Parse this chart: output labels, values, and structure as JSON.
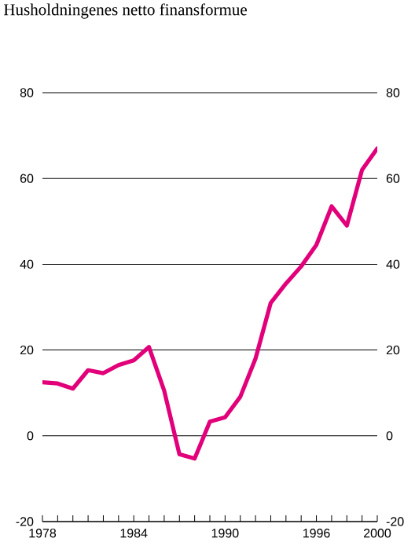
{
  "chart_data": {
    "type": "line",
    "title": "Husholdningenes netto finansformue",
    "x": [
      1978,
      1979,
      1980,
      1981,
      1982,
      1983,
      1984,
      1985,
      1986,
      1987,
      1988,
      1989,
      1990,
      1991,
      1992,
      1993,
      1994,
      1995,
      1996,
      1997,
      1998,
      1999,
      2000
    ],
    "series": [
      {
        "color": "#e2007a",
        "values": [
          12.5,
          12.2,
          11,
          15.3,
          14.6,
          16.5,
          17.6,
          20.7,
          10.5,
          -4.3,
          -5.3,
          3.3,
          4.3,
          9.1,
          18,
          31,
          35.5,
          39.5,
          44.5,
          53.5,
          49,
          62,
          67
        ]
      }
    ],
    "xlim": [
      1978,
      2000
    ],
    "xticks": [
      1978,
      {
        "value": 1979,
        "label": null
      },
      {
        "value": 1980,
        "label": null
      },
      {
        "value": 1981,
        "label": null
      },
      {
        "value": 1982,
        "label": null
      },
      {
        "value": 1983,
        "label": null
      },
      1984,
      {
        "value": 1985,
        "label": null
      },
      {
        "value": 1986,
        "label": null
      },
      {
        "value": 1987,
        "label": null
      },
      {
        "value": 1988,
        "label": null
      },
      {
        "value": 1989,
        "label": null
      },
      1990,
      {
        "value": 1991,
        "label": null
      },
      {
        "value": 1992,
        "label": null
      },
      {
        "value": 1993,
        "label": null
      },
      {
        "value": 1994,
        "label": null
      },
      {
        "value": 1995,
        "label": null
      },
      1996,
      {
        "value": 1997,
        "label": null
      },
      {
        "value": 1998,
        "label": null
      },
      {
        "value": 1999,
        "label": null
      },
      2000
    ],
    "ylim": [
      -20,
      80
    ],
    "yticks": [
      -20,
      0,
      20,
      40,
      60,
      80
    ],
    "y2lim": [
      -20,
      80
    ],
    "y2ticks": [
      -20,
      0,
      20,
      40,
      60,
      80
    ],
    "grid": "y",
    "marker": "none",
    "line_style": "solid"
  }
}
